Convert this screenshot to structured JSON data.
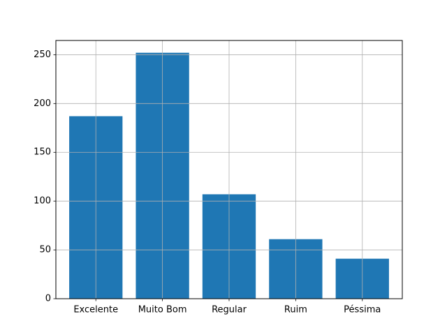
{
  "chart_data": {
    "type": "bar",
    "title": "",
    "xlabel": "",
    "ylabel": "",
    "categories": [
      "Excelente",
      "Muito Bom",
      "Regular",
      "Ruim",
      "Péssima"
    ],
    "values": [
      187,
      252,
      107,
      61,
      41
    ],
    "ylim": [
      0,
      264.6
    ],
    "yticks": [
      0,
      50,
      100,
      150,
      200,
      250
    ],
    "grid": true,
    "legend": "none",
    "bar_color": "#1f77b4",
    "grid_color": "#b0b0b0",
    "axis_color": "#000000"
  }
}
